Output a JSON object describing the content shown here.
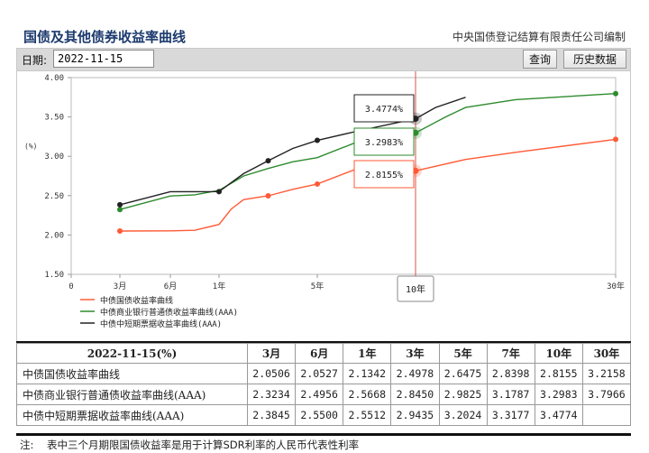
{
  "header": {
    "title": "国债及其他债券收益率曲线",
    "publisher": "中央国债登记结算有限责任公司编制"
  },
  "toolbar": {
    "date_label": "日期:",
    "date_value": "2022-11-15",
    "query_label": "查询",
    "history_label": "历史数据"
  },
  "colors": {
    "treasury": "#ff5a36",
    "bank": "#2e8b2e",
    "cp": "#222222",
    "cursor": "#d9534f"
  },
  "chart_data": {
    "type": "line",
    "ylabel": "(%)",
    "ylim": [
      1.5,
      4.0
    ],
    "yticks": [
      "4.00",
      "3.50",
      "3.00",
      "2.50",
      "2.00",
      "1.50"
    ],
    "xticks": [
      "0",
      "3月",
      "6月",
      "1年",
      "5年",
      "10年",
      "30年"
    ],
    "x_positions_label": "term",
    "series": [
      {
        "name": "中债国债收益率曲线",
        "key": "treasury",
        "points": [
          [
            0.25,
            2.0506
          ],
          [
            0.5,
            2.0527
          ],
          [
            0.75,
            2.06
          ],
          [
            1,
            2.1342
          ],
          [
            1.5,
            2.33
          ],
          [
            2,
            2.45
          ],
          [
            3,
            2.4978
          ],
          [
            4,
            2.58
          ],
          [
            5,
            2.6475
          ],
          [
            7,
            2.8398
          ],
          [
            10,
            2.8155
          ],
          [
            15,
            2.96
          ],
          [
            20,
            3.05
          ],
          [
            30,
            3.2158
          ]
        ]
      },
      {
        "name": "中债商业银行普通债收益率曲线(AAA)",
        "key": "bank",
        "points": [
          [
            0.25,
            2.3234
          ],
          [
            0.5,
            2.4956
          ],
          [
            0.75,
            2.51
          ],
          [
            1,
            2.5668
          ],
          [
            2,
            2.75
          ],
          [
            3,
            2.845
          ],
          [
            4,
            2.93
          ],
          [
            5,
            2.9825
          ],
          [
            7,
            3.1787
          ],
          [
            10,
            3.2983
          ],
          [
            13,
            3.5
          ],
          [
            15,
            3.62
          ],
          [
            20,
            3.72
          ],
          [
            30,
            3.7966
          ]
        ]
      },
      {
        "name": "中债中短期票据收益率曲线(AAA)",
        "key": "cp",
        "points": [
          [
            0.25,
            2.3845
          ],
          [
            0.5,
            2.55
          ],
          [
            0.75,
            2.55
          ],
          [
            1,
            2.5512
          ],
          [
            2,
            2.78
          ],
          [
            3,
            2.9435
          ],
          [
            4,
            3.1
          ],
          [
            5,
            3.2024
          ],
          [
            7,
            3.3177
          ],
          [
            10,
            3.4774
          ],
          [
            12,
            3.62
          ],
          [
            15,
            3.75
          ]
        ]
      }
    ],
    "markers": {
      "treasury": [
        [
          0.25,
          2.0506
        ],
        [
          3,
          2.4978
        ],
        [
          5,
          2.6475
        ],
        [
          10,
          2.8155
        ],
        [
          30,
          3.2158
        ]
      ],
      "bank": [
        [
          0.25,
          2.3234
        ],
        [
          10,
          3.2983
        ],
        [
          30,
          3.7966
        ]
      ],
      "cp": [
        [
          0.25,
          2.3845
        ],
        [
          1,
          2.5512
        ],
        [
          3,
          2.9435
        ],
        [
          5,
          3.2024
        ],
        [
          10,
          3.4774
        ]
      ]
    },
    "cursor": {
      "x_label": "10年",
      "tooltips": [
        {
          "key": "cp",
          "value": "3.4774%"
        },
        {
          "key": "bank",
          "value": "3.2983%"
        },
        {
          "key": "treasury",
          "value": "2.8155%"
        }
      ]
    }
  },
  "table": {
    "header_label": "2022-11-15(%)",
    "columns": [
      "3月",
      "6月",
      "1年",
      "3年",
      "5年",
      "7年",
      "10年",
      "30年"
    ],
    "rows": [
      {
        "name": "中债国债收益率曲线",
        "values": [
          "2.0506",
          "2.0527",
          "2.1342",
          "2.4978",
          "2.6475",
          "2.8398",
          "2.8155",
          "3.2158"
        ]
      },
      {
        "name": "中债商业银行普通债收益率曲线(AAA)",
        "values": [
          "2.3234",
          "2.4956",
          "2.5668",
          "2.8450",
          "2.9825",
          "3.1787",
          "3.2983",
          "3.7966"
        ]
      },
      {
        "name": "中债中短期票据收益率曲线(AAA)",
        "values": [
          "2.3845",
          "2.5500",
          "2.5512",
          "2.9435",
          "3.2024",
          "3.3177",
          "3.4774",
          ""
        ]
      }
    ]
  },
  "note": {
    "label": "注:",
    "text": "表中三个月期限国债收益率是用于计算SDR利率的人民币代表性利率"
  }
}
